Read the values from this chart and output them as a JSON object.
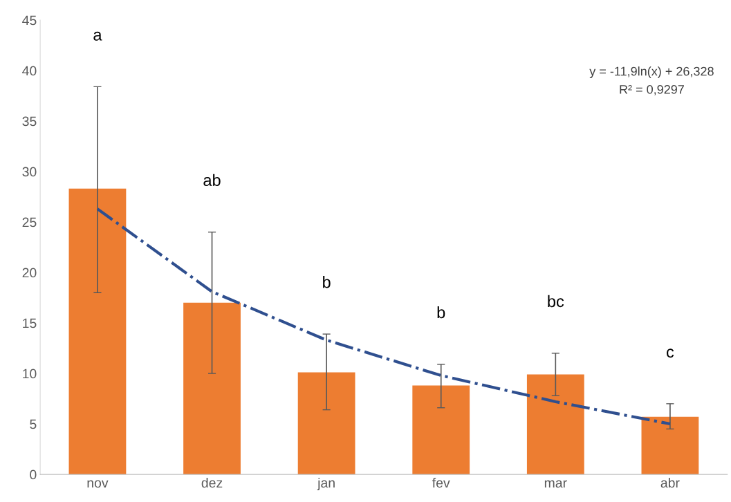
{
  "chart_data": {
    "type": "bar",
    "categories": [
      "nov",
      "dez",
      "jan",
      "fev",
      "mar",
      "abr"
    ],
    "series": [
      {
        "color": "#ed7d31",
        "values": [
          28.3,
          17.0,
          10.1,
          8.8,
          9.9,
          5.7
        ],
        "errors": [
          [
            18.0,
            38.4
          ],
          [
            10.0,
            24.0
          ],
          [
            6.4,
            13.9
          ],
          [
            6.6,
            10.9
          ],
          [
            7.8,
            12.0
          ],
          [
            4.5,
            7.0
          ]
        ]
      },
      {
        "type": "line",
        "color": "#2f4f8f",
        "line_style": "dashdot",
        "values": [
          26.3,
          18.1,
          13.3,
          9.8,
          7.2,
          5.0
        ]
      }
    ],
    "annotations": [
      "a",
      "ab",
      "b",
      "b",
      "bc",
      "c",
      "y = -11,9ln(x) + 26,328",
      "R² = 0,9297"
    ],
    "ylim": [
      0,
      45
    ],
    "yticks": [
      0,
      5,
      10,
      15,
      20,
      25,
      30,
      35,
      40,
      45
    ],
    "grid": false,
    "legend": false
  }
}
